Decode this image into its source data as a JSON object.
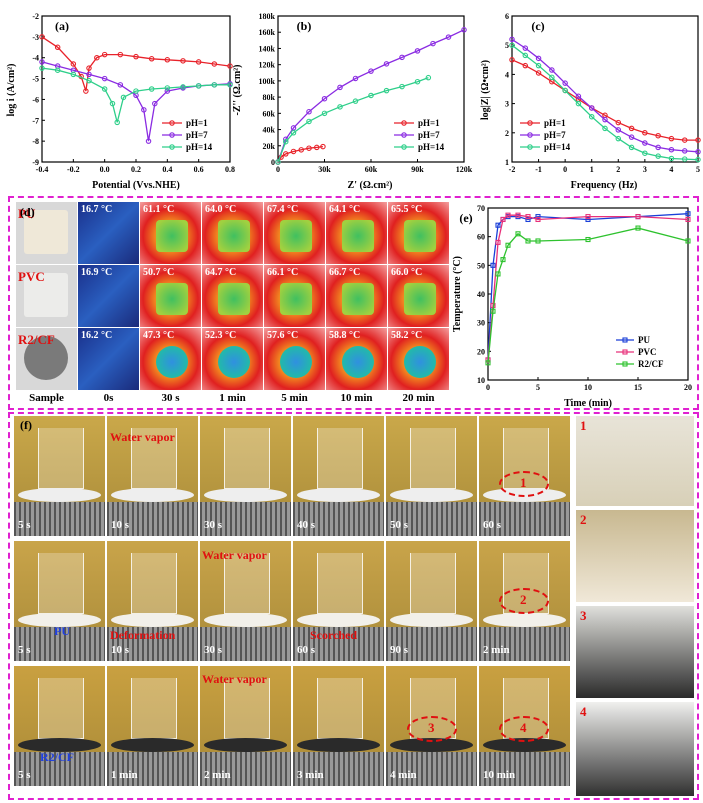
{
  "panel_a": {
    "label": "(a)",
    "ylabel": "log i (A/cm²)",
    "xlabel": "Potential (Vvs.NHE)",
    "xticks": [
      "-0.4",
      "-0.2",
      "0.0",
      "0.2",
      "0.4",
      "0.6",
      "0.8"
    ],
    "yticks": [
      "-2",
      "-3",
      "-4",
      "-5",
      "-6",
      "-7",
      "-8",
      "-9"
    ],
    "legend": [
      "pH=1",
      "pH=7",
      "pH=14"
    ]
  },
  "panel_b": {
    "label": "(b)",
    "ylabel": "-Z'' (Ω.cm²)",
    "xlabel": "Z' (Ω.cm²)",
    "xticks": [
      "0",
      "30k",
      "60k",
      "90k",
      "120k"
    ],
    "yticks": [
      "0",
      "20k",
      "40k",
      "60k",
      "80k",
      "100k",
      "120k",
      "140k",
      "160k",
      "180k"
    ],
    "legend": [
      "pH=1",
      "pH=7",
      "pH=14"
    ]
  },
  "panel_c": {
    "label": "(c)",
    "ylabel": "log|Z| (Ω•cm²)",
    "xlabel": "Frequency (Hz)",
    "xticks": [
      "-2",
      "-1",
      "0",
      "1",
      "2",
      "3",
      "4",
      "5"
    ],
    "yticks": [
      "1",
      "2",
      "3",
      "4",
      "5",
      "6"
    ],
    "legend": [
      "pH=1",
      "pH=7",
      "pH=14"
    ]
  },
  "panel_d": {
    "label": "(d)",
    "rows": [
      {
        "name": "PU",
        "temps": [
          "16.7 °C",
          "61.1 °C",
          "64.0 °C",
          "67.4 °C",
          "64.1 °C",
          "65.5 °C"
        ]
      },
      {
        "name": "PVC",
        "temps": [
          "16.9 °C",
          "50.7 °C",
          "64.7 °C",
          "66.1 °C",
          "66.7 °C",
          "66.0 °C"
        ]
      },
      {
        "name": "R2/CF",
        "temps": [
          "16.2 °C",
          "47.3 °C",
          "52.3 °C",
          "57.6 °C",
          "58.8 °C",
          "58.2 °C"
        ]
      }
    ],
    "columns": [
      "Sample",
      "0s",
      "30 s",
      "1 min",
      "5 min",
      "10 min",
      "20 min"
    ]
  },
  "panel_e": {
    "label": "(e)",
    "ylabel": "Temperature (°C)",
    "xlabel": "Time (min)",
    "xticks": [
      "0",
      "5",
      "10",
      "15",
      "20"
    ],
    "yticks": [
      "10",
      "20",
      "30",
      "40",
      "50",
      "60",
      "70"
    ],
    "legend": [
      "PU",
      "PVC",
      "R2/CF"
    ]
  },
  "panel_f": {
    "label": "(f)",
    "row1": {
      "times": [
        "5 s",
        "10 s",
        "30 s",
        "40 s",
        "50 s",
        "60 s"
      ],
      "note": "Water vapor",
      "mark": "1"
    },
    "row2": {
      "times": [
        "5 s",
        "10 s",
        "30 s",
        "60 s",
        "90 s",
        "2 min"
      ],
      "notes": [
        "PU",
        "Deformation",
        "Water vapor",
        "Scorched"
      ],
      "mark": "2"
    },
    "row3": {
      "times": [
        "5 s",
        "1 min",
        "2 min",
        "3 min",
        "4 min",
        "10 min"
      ],
      "notes": [
        "R2/CF",
        "Water vapor"
      ],
      "marks": [
        "3",
        "4"
      ]
    },
    "zoom_labels": [
      "1",
      "2",
      "3",
      "4"
    ]
  },
  "chart_data": [
    {
      "type": "line",
      "title": "(a)",
      "xlabel": "Potential (Vvs.NHE)",
      "ylabel": "log i (A/cm²)",
      "xlim": [
        -0.4,
        0.8
      ],
      "ylim": [
        -9,
        -2
      ],
      "series": [
        {
          "name": "pH=1",
          "x": [
            -0.4,
            -0.3,
            -0.2,
            -0.15,
            -0.12,
            -0.1,
            -0.05,
            0.0,
            0.1,
            0.2,
            0.3,
            0.4,
            0.5,
            0.6,
            0.7,
            0.8
          ],
          "y": [
            -3.0,
            -3.5,
            -4.3,
            -4.9,
            -5.6,
            -4.5,
            -4.0,
            -3.85,
            -3.85,
            -3.95,
            -4.05,
            -4.1,
            -4.15,
            -4.2,
            -4.3,
            -4.4
          ]
        },
        {
          "name": "pH=7",
          "x": [
            -0.4,
            -0.3,
            -0.2,
            -0.1,
            0.0,
            0.1,
            0.2,
            0.25,
            0.28,
            0.32,
            0.4,
            0.5,
            0.6,
            0.7,
            0.8
          ],
          "y": [
            -4.2,
            -4.4,
            -4.6,
            -4.8,
            -5.0,
            -5.3,
            -5.8,
            -6.5,
            -8.0,
            -6.2,
            -5.6,
            -5.45,
            -5.35,
            -5.3,
            -5.25
          ]
        },
        {
          "name": "pH=14",
          "x": [
            -0.4,
            -0.3,
            -0.2,
            -0.1,
            0.0,
            0.05,
            0.08,
            0.12,
            0.2,
            0.3,
            0.4,
            0.5,
            0.6,
            0.7,
            0.8
          ],
          "y": [
            -4.5,
            -4.6,
            -4.8,
            -5.1,
            -5.5,
            -6.2,
            -7.1,
            -5.9,
            -5.6,
            -5.5,
            -5.45,
            -5.4,
            -5.35,
            -5.3,
            -5.3
          ]
        }
      ]
    },
    {
      "type": "line",
      "title": "(b)",
      "xlabel": "Z' (Ω.cm²)",
      "ylabel": "-Z'' (Ω.cm²)",
      "xlim": [
        0,
        120000
      ],
      "ylim": [
        0,
        180000
      ],
      "series": [
        {
          "name": "pH=1",
          "x": [
            0,
            2000,
            5000,
            10000,
            15000,
            20000,
            25000,
            29000
          ],
          "y": [
            0,
            6000,
            10000,
            13000,
            15000,
            17000,
            18000,
            19000
          ]
        },
        {
          "name": "pH=7",
          "x": [
            0,
            5000,
            10000,
            20000,
            30000,
            40000,
            50000,
            60000,
            70000,
            80000,
            90000,
            100000,
            110000,
            120000
          ],
          "y": [
            0,
            28000,
            42000,
            62000,
            78000,
            92000,
            103000,
            112000,
            121000,
            129000,
            137000,
            146000,
            154000,
            163000
          ]
        },
        {
          "name": "pH=14",
          "x": [
            0,
            5000,
            10000,
            20000,
            30000,
            40000,
            50000,
            60000,
            70000,
            80000,
            90000,
            97000
          ],
          "y": [
            0,
            25000,
            36000,
            50000,
            60000,
            68000,
            75000,
            82000,
            88000,
            93000,
            99000,
            104000
          ]
        }
      ]
    },
    {
      "type": "line",
      "title": "(c)",
      "xlabel": "Frequency (Hz)",
      "ylabel": "log|Z| (Ω•cm²)",
      "xlim": [
        -2,
        5
      ],
      "ylim": [
        1,
        6
      ],
      "series": [
        {
          "name": "pH=1",
          "x": [
            -2,
            -1.5,
            -1,
            -0.5,
            0,
            0.5,
            1,
            1.5,
            2,
            2.5,
            3,
            3.5,
            4,
            4.5,
            5
          ],
          "y": [
            4.5,
            4.3,
            4.05,
            3.75,
            3.45,
            3.15,
            2.85,
            2.6,
            2.35,
            2.15,
            2.0,
            1.9,
            1.8,
            1.75,
            1.75
          ]
        },
        {
          "name": "pH=7",
          "x": [
            -2,
            -1.5,
            -1,
            -0.5,
            0,
            0.5,
            1,
            1.5,
            2,
            2.5,
            3,
            3.5,
            4,
            4.5,
            5
          ],
          "y": [
            5.2,
            4.9,
            4.55,
            4.15,
            3.7,
            3.25,
            2.85,
            2.45,
            2.1,
            1.85,
            1.65,
            1.5,
            1.42,
            1.38,
            1.35
          ]
        },
        {
          "name": "pH=14",
          "x": [
            -2,
            -1.5,
            -1,
            -0.5,
            0,
            0.5,
            1,
            1.5,
            2,
            2.5,
            3,
            3.5,
            4,
            4.5,
            5
          ],
          "y": [
            5.0,
            4.65,
            4.3,
            3.9,
            3.45,
            3.0,
            2.55,
            2.15,
            1.8,
            1.5,
            1.3,
            1.2,
            1.12,
            1.1,
            1.08
          ]
        }
      ]
    },
    {
      "type": "line",
      "title": "(e)",
      "xlabel": "Time (min)",
      "ylabel": "Temperature (°C)",
      "xlim": [
        0,
        20
      ],
      "ylim": [
        10,
        70
      ],
      "series": [
        {
          "name": "PU",
          "x": [
            0,
            0.5,
            1,
            1.5,
            2,
            3,
            4,
            5,
            10,
            15,
            20
          ],
          "y": [
            17,
            50,
            64,
            66,
            67,
            67,
            66,
            67,
            66,
            67,
            68
          ]
        },
        {
          "name": "PVC",
          "x": [
            0,
            0.5,
            1,
            1.5,
            2,
            3,
            4,
            5,
            10,
            15,
            20
          ],
          "y": [
            17,
            36,
            58,
            66,
            67.5,
            67.5,
            67,
            66,
            67,
            67,
            66
          ]
        },
        {
          "name": "R2/CF",
          "x": [
            0,
            0.5,
            1,
            1.5,
            2,
            3,
            4,
            5,
            10,
            15,
            20
          ],
          "y": [
            16,
            34,
            47,
            52,
            57,
            61,
            58.5,
            58.5,
            59,
            63,
            58.5
          ]
        }
      ]
    }
  ],
  "colors": {
    "pH1": "#e8222a",
    "pH7": "#8a2be2",
    "pH14": "#2ecf8a",
    "PU": "#1a3fd8",
    "PVC": "#e8307a",
    "R2CF": "#2ec22e",
    "frame": "#e020d0",
    "red_text": "#e01010",
    "blue_text": "#2040e0"
  }
}
